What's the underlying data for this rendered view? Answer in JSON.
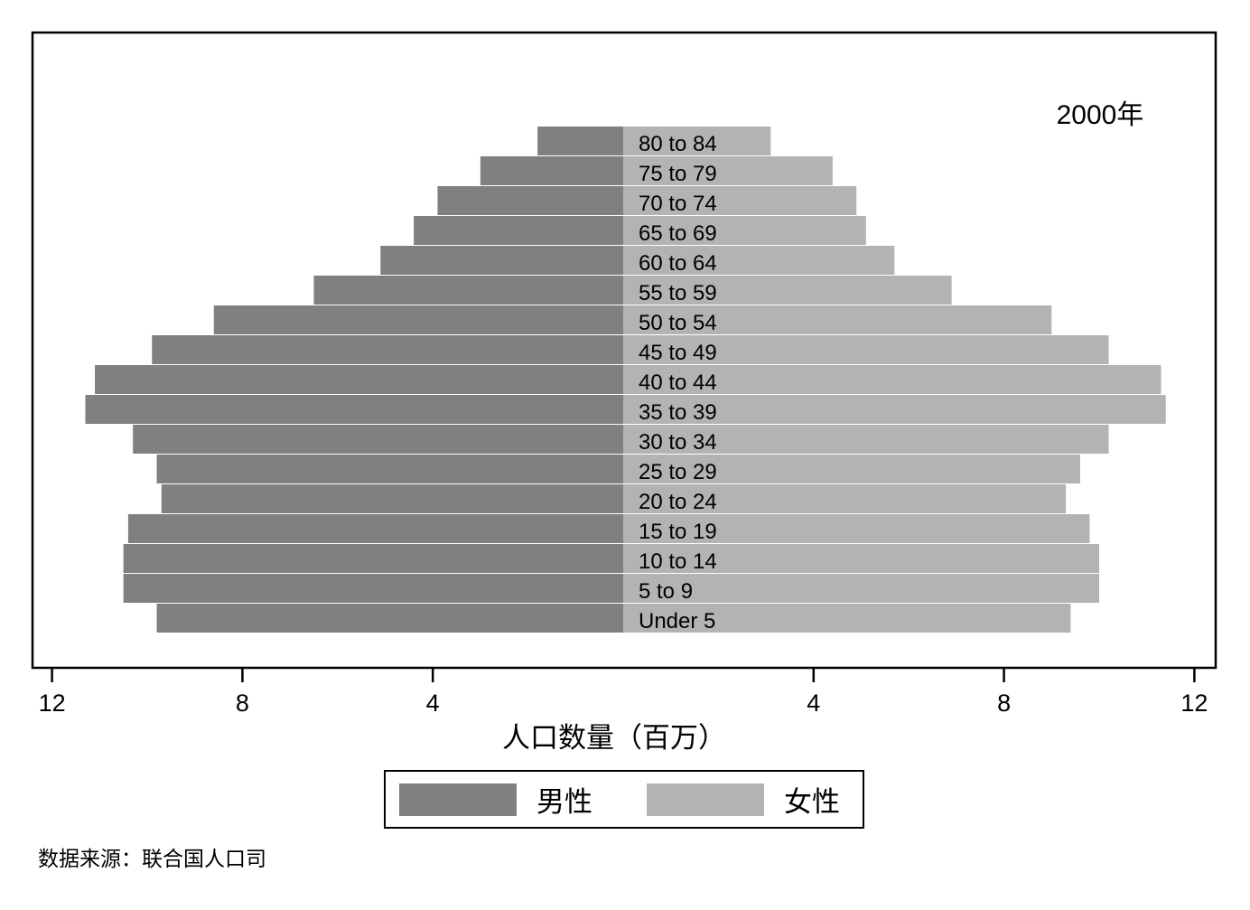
{
  "chart_data": {
    "type": "bar",
    "annotation": "2000年",
    "xlabel": "人口数量（百万）",
    "source": "数据来源：联合国人口司",
    "x_ticks": [
      "12",
      "8",
      "4",
      "4",
      "8",
      "12"
    ],
    "categories": [
      "80 to 84",
      "75 to 79",
      "70 to 74",
      "65 to 69",
      "60 to 64",
      "55 to 59",
      "50 to 54",
      "45 to 49",
      "40 to 44",
      "35 to 39",
      "30 to 34",
      "25 to 29",
      "20 to 24",
      "15 to 19",
      "10 to 14",
      "5 to 9",
      "Under 5"
    ],
    "series": [
      {
        "name": "男性",
        "color": "#808080",
        "values": [
          1.8,
          3.0,
          3.9,
          4.4,
          5.1,
          6.5,
          8.6,
          9.9,
          11.1,
          11.3,
          10.3,
          9.8,
          9.7,
          10.4,
          10.5,
          10.5,
          9.8
        ]
      },
      {
        "name": "女性",
        "color": "#b3b3b3",
        "values": [
          3.1,
          4.4,
          4.9,
          5.1,
          5.7,
          6.9,
          9.0,
          10.2,
          11.3,
          11.4,
          10.2,
          9.6,
          9.3,
          9.8,
          10.0,
          10.0,
          9.4
        ]
      }
    ],
    "xlim": [
      -12,
      12
    ],
    "legend_position": "bottom",
    "grid": false
  }
}
